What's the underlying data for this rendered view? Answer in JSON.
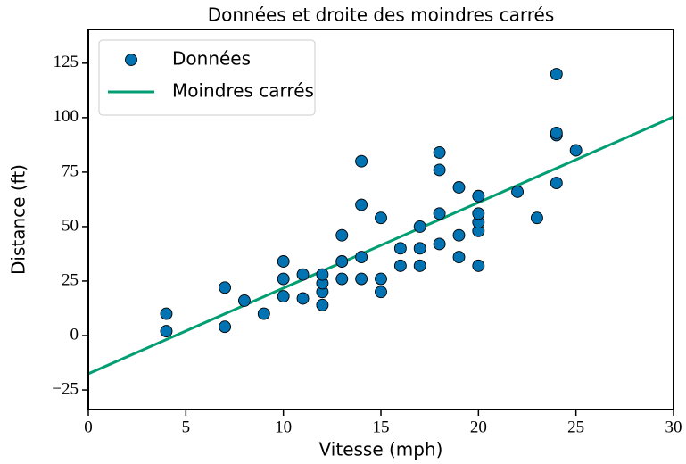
{
  "chart_data": {
    "type": "scatter",
    "title": "Données et droite des moindres carrés",
    "xlabel": "Vitesse (mph)",
    "ylabel": "Distance (ft)",
    "xlim": [
      0,
      30
    ],
    "ylim": [
      -34,
      140.5
    ],
    "xticks": [
      0,
      5,
      10,
      15,
      20,
      25,
      30
    ],
    "yticks": [
      {
        "value": -25,
        "label": "−25"
      },
      0,
      25,
      50,
      75,
      100,
      125
    ],
    "legend": "upper left",
    "grid": false,
    "series": [
      {
        "name": "Données",
        "type": "scatter",
        "color": "#0173b2",
        "x": [
          4,
          4,
          7,
          7,
          8,
          9,
          10,
          10,
          10,
          11,
          11,
          12,
          12,
          12,
          12,
          13,
          13,
          13,
          13,
          14,
          14,
          14,
          14,
          15,
          15,
          15,
          16,
          16,
          17,
          17,
          17,
          18,
          18,
          18,
          18,
          19,
          19,
          19,
          20,
          20,
          20,
          20,
          20,
          22,
          23,
          24,
          24,
          24,
          24,
          25
        ],
        "values": [
          2,
          10,
          4,
          22,
          16,
          10,
          18,
          26,
          34,
          17,
          28,
          14,
          20,
          24,
          28,
          26,
          34,
          34,
          46,
          26,
          36,
          60,
          80,
          20,
          26,
          54,
          32,
          40,
          32,
          40,
          50,
          42,
          56,
          76,
          84,
          36,
          46,
          68,
          32,
          48,
          52,
          56,
          64,
          66,
          54,
          70,
          92,
          93,
          120,
          85
        ]
      },
      {
        "name": "Moindres carrés",
        "type": "line",
        "color": "#029e73",
        "x": [
          0,
          30
        ],
        "values": [
          -17.579,
          100.382
        ]
      }
    ]
  }
}
